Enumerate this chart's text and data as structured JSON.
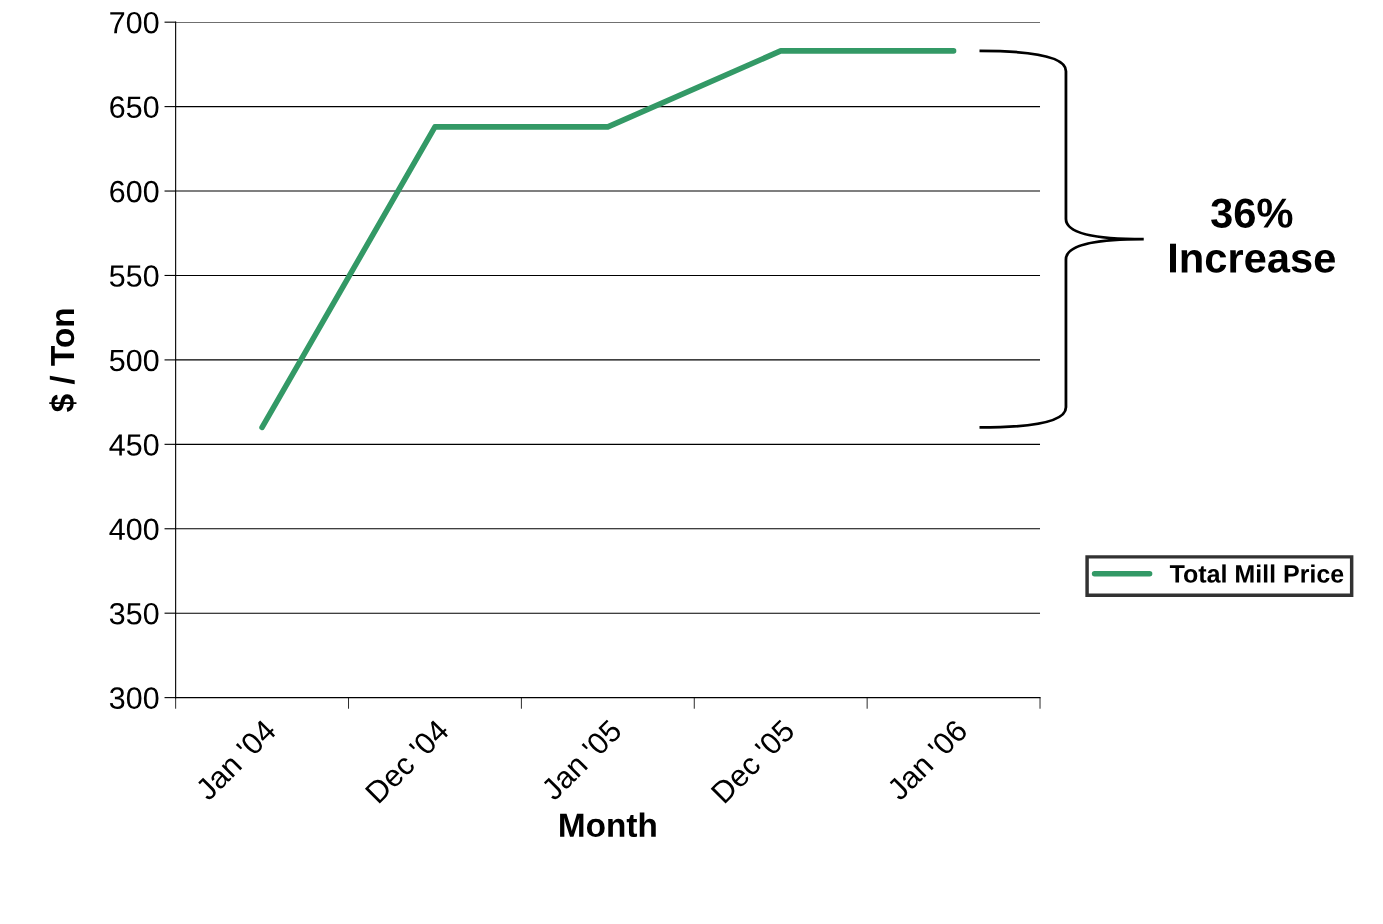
{
  "chart_data": {
    "type": "line",
    "xlabel": "Month",
    "ylabel": "$ / Ton",
    "categories": [
      "Jan '04",
      "Dec '04",
      "Jan '05",
      "Dec '05",
      "Jan '06"
    ],
    "series": [
      {
        "name": "Total Mill Price",
        "color": "#339966",
        "values": [
          460,
          638,
          638,
          683,
          683
        ]
      }
    ],
    "ylim": [
      300,
      700
    ],
    "yticks": [
      300,
      350,
      400,
      450,
      500,
      550,
      600,
      650,
      700
    ],
    "grid": "y",
    "legend": "right",
    "marker": "none",
    "line_style": "solid",
    "annotations": [
      "36%\nIncrease"
    ]
  }
}
